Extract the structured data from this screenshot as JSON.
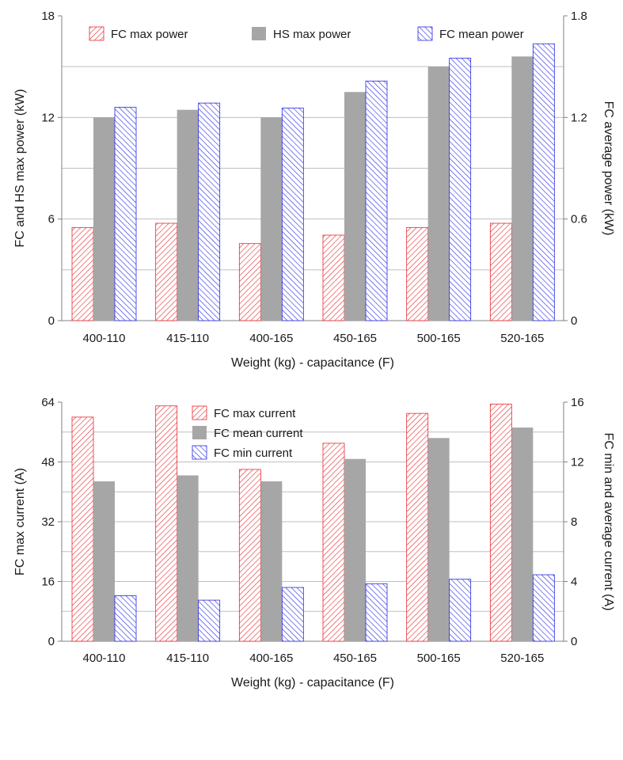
{
  "chart_data": [
    {
      "type": "bar",
      "categories": [
        "400-110",
        "415-110",
        "400-165",
        "450-165",
        "500-165",
        "520-165"
      ],
      "xlabel": "Weight (kg) - capacitance (F)",
      "ylabel_left": "FC and HS max power (kW)",
      "ylabel_right": "FC average power (kW)",
      "ylim_left": [
        0,
        18
      ],
      "ylim_right": [
        0,
        1.8
      ],
      "yticks_left": [
        "0",
        "6",
        "12",
        "18"
      ],
      "yticks_right": [
        "0",
        "0.6",
        "1.2",
        "1.8"
      ],
      "grid": true,
      "legend_position": "top",
      "series": [
        {
          "name": "FC max power",
          "axis": "left",
          "style": "hatch",
          "color": "#e8282e",
          "values": [
            5.5,
            5.75,
            4.55,
            5.05,
            5.5,
            5.75
          ]
        },
        {
          "name": "HS max power",
          "axis": "left",
          "style": "solid",
          "color": "#a6a6a6",
          "values": [
            12.0,
            12.45,
            12.0,
            13.5,
            15.0,
            15.6
          ]
        },
        {
          "name": "FC mean power",
          "axis": "right",
          "style": "hatch",
          "color": "#2828e6",
          "values": [
            1.26,
            1.285,
            1.255,
            1.415,
            1.55,
            1.635
          ]
        }
      ]
    },
    {
      "type": "bar",
      "categories": [
        "400-110",
        "415-110",
        "400-165",
        "450-165",
        "500-165",
        "520-165"
      ],
      "xlabel": "Weight (kg) - capacitance (F)",
      "ylabel_left": "FC max current (A)",
      "ylabel_right": "FC min and average current (A)",
      "ylim_left": [
        0,
        64
      ],
      "ylim_right": [
        0,
        16
      ],
      "yticks_left": [
        "0",
        "16",
        "32",
        "48",
        "64"
      ],
      "yticks_right": [
        "0",
        "4",
        "8",
        "12",
        "16"
      ],
      "grid": true,
      "legend_position": "top",
      "series": [
        {
          "name": "FC max current",
          "axis": "left",
          "style": "hatch",
          "color": "#e8282e",
          "values": [
            60.0,
            63.0,
            46.0,
            53.0,
            61.0,
            63.5
          ]
        },
        {
          "name": "FC mean current",
          "axis": "right",
          "style": "solid",
          "color": "#a6a6a6",
          "values": [
            10.7,
            11.1,
            10.7,
            12.2,
            13.6,
            14.3
          ]
        },
        {
          "name": "FC min current",
          "axis": "right",
          "style": "hatch",
          "color": "#2828e6",
          "values": [
            3.05,
            2.75,
            3.6,
            3.85,
            4.15,
            4.45
          ]
        }
      ]
    }
  ]
}
